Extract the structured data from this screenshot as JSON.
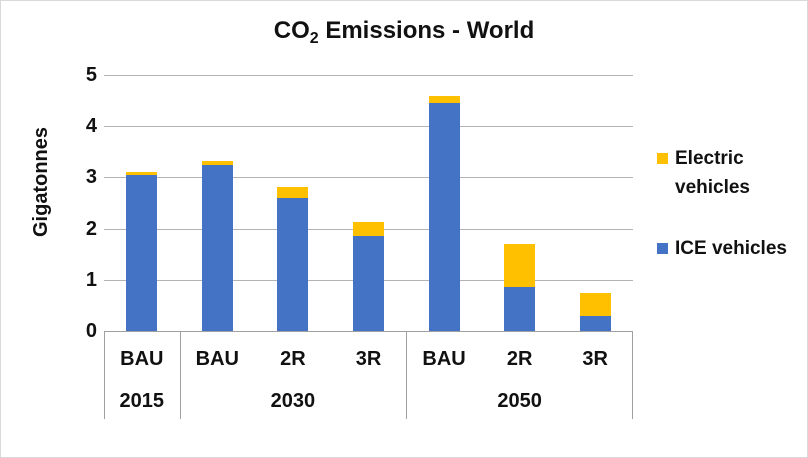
{
  "title": {
    "part1": "CO",
    "sub": "2",
    "part2": " Emissions - World"
  },
  "chart_data": {
    "type": "bar",
    "stacked": true,
    "title": "CO2 Emissions - World",
    "ylabel": "Gigatonnes",
    "ylim": [
      0,
      5
    ],
    "yticks": [
      0,
      1,
      2,
      3,
      4,
      5
    ],
    "grid": true,
    "legend_position": "right",
    "categories": [
      "BAU",
      "BAU",
      "2R",
      "3R",
      "BAU",
      "2R",
      "3R"
    ],
    "group_labels": [
      {
        "label": "2015",
        "span": 1
      },
      {
        "label": "2030",
        "span": 3
      },
      {
        "label": "2050",
        "span": 3
      }
    ],
    "series": [
      {
        "name": "ICE vehicles",
        "color": "#4472C4",
        "values": [
          3.05,
          3.25,
          2.6,
          1.85,
          4.45,
          0.85,
          0.3
        ]
      },
      {
        "name": "Electric vehicles",
        "color": "#FFC000",
        "values": [
          0.05,
          0.07,
          0.22,
          0.28,
          0.15,
          0.85,
          0.45
        ]
      }
    ]
  },
  "legend": {
    "items": [
      {
        "label": "Electric vehicles",
        "color": "#FFC000"
      },
      {
        "label": "ICE vehicles",
        "color": "#4472C4"
      }
    ]
  },
  "colors": {
    "ice_blue": "#4472C4",
    "electric_yellow": "#FFC000",
    "gridline": "#b3b3b3",
    "axis_line": "#a0a0a0",
    "text": "#111111",
    "frame_border": "#d9d9d9",
    "background": "#ffffff"
  }
}
